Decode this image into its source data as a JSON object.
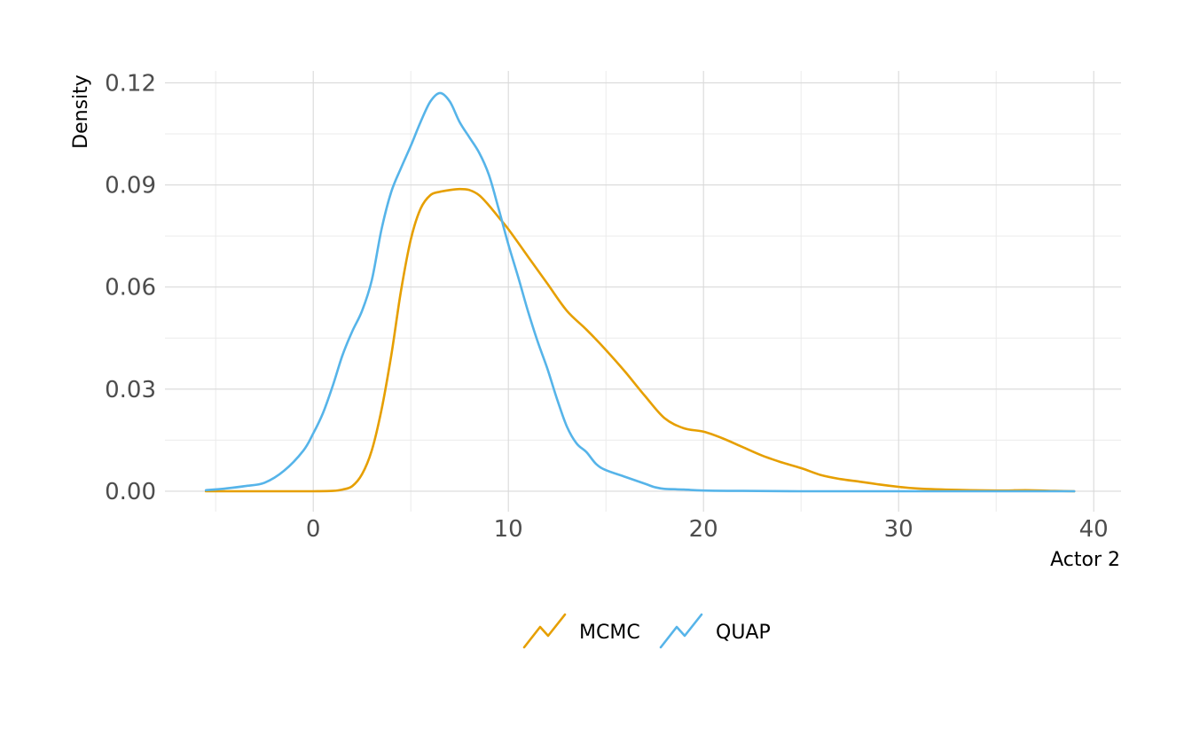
{
  "chart_data": {
    "type": "line",
    "title": "",
    "xlabel": "Actor 2",
    "ylabel": "Density",
    "xlim": [
      -7.6,
      41.4
    ],
    "ylim": [
      -0.006,
      0.1235
    ],
    "x_ticks": [
      0,
      10,
      20,
      30,
      40
    ],
    "x_tick_labels": [
      "0",
      "10",
      "20",
      "30",
      "40"
    ],
    "x_minor_ticks": [
      -5,
      5,
      15,
      25,
      35
    ],
    "y_ticks": [
      0,
      0.03,
      0.06,
      0.09,
      0.12
    ],
    "y_tick_labels": [
      "0.00",
      "0.03",
      "0.06",
      "0.09",
      "0.12"
    ],
    "y_minor_ticks": [
      0.015,
      0.045,
      0.075,
      0.105
    ],
    "grid": true,
    "legend_position": "bottom",
    "series": [
      {
        "name": "MCMC",
        "color": "#E69F00",
        "x": [
          -5.5,
          -2,
          0,
          1,
          1.5,
          2,
          2.5,
          3,
          3.5,
          4,
          4.5,
          5,
          5.5,
          6,
          6.5,
          7,
          7.5,
          8,
          8.5,
          9,
          9.5,
          10,
          11,
          12,
          13,
          14,
          15,
          16,
          17,
          18,
          19,
          20,
          21,
          22,
          23,
          24,
          25,
          26,
          27,
          28,
          29,
          30,
          31,
          33,
          35,
          36.5,
          38,
          39
        ],
        "y": [
          0,
          0,
          0,
          0.0001,
          0.0005,
          0.0015,
          0.005,
          0.012,
          0.024,
          0.04,
          0.059,
          0.074,
          0.083,
          0.087,
          0.088,
          0.0885,
          0.0888,
          0.0885,
          0.087,
          0.084,
          0.0805,
          0.077,
          0.069,
          0.061,
          0.053,
          0.0475,
          0.0415,
          0.035,
          0.028,
          0.0215,
          0.0185,
          0.0175,
          0.0155,
          0.013,
          0.0105,
          0.0085,
          0.0068,
          0.0048,
          0.0036,
          0.0028,
          0.002,
          0.0013,
          0.0008,
          0.0004,
          0.0002,
          0.0003,
          0.0001,
          0
        ]
      },
      {
        "name": "QUAP",
        "color": "#56B4E9",
        "x": [
          -5.5,
          -4.5,
          -3.5,
          -2.5,
          -1.5,
          -0.5,
          0,
          0.5,
          1,
          1.5,
          2,
          2.5,
          3,
          3.5,
          4,
          4.5,
          5,
          5.5,
          6,
          6.5,
          7,
          7.5,
          8,
          8.5,
          9,
          9.5,
          10,
          10.5,
          11,
          11.5,
          12,
          12.5,
          13,
          13.5,
          14,
          14.5,
          15,
          16,
          17,
          17.5,
          18,
          19,
          20,
          22,
          25,
          30,
          35,
          39
        ],
        "y": [
          0.0003,
          0.0008,
          0.0015,
          0.0025,
          0.006,
          0.012,
          0.017,
          0.023,
          0.031,
          0.04,
          0.047,
          0.053,
          0.062,
          0.077,
          0.088,
          0.095,
          0.1015,
          0.1085,
          0.1145,
          0.117,
          0.1145,
          0.1085,
          0.104,
          0.0995,
          0.093,
          0.083,
          0.0725,
          0.063,
          0.053,
          0.044,
          0.036,
          0.027,
          0.019,
          0.014,
          0.0115,
          0.008,
          0.0062,
          0.0042,
          0.0022,
          0.0012,
          0.0007,
          0.0005,
          0.0002,
          0.0001,
          0,
          0,
          0,
          0
        ]
      }
    ]
  }
}
